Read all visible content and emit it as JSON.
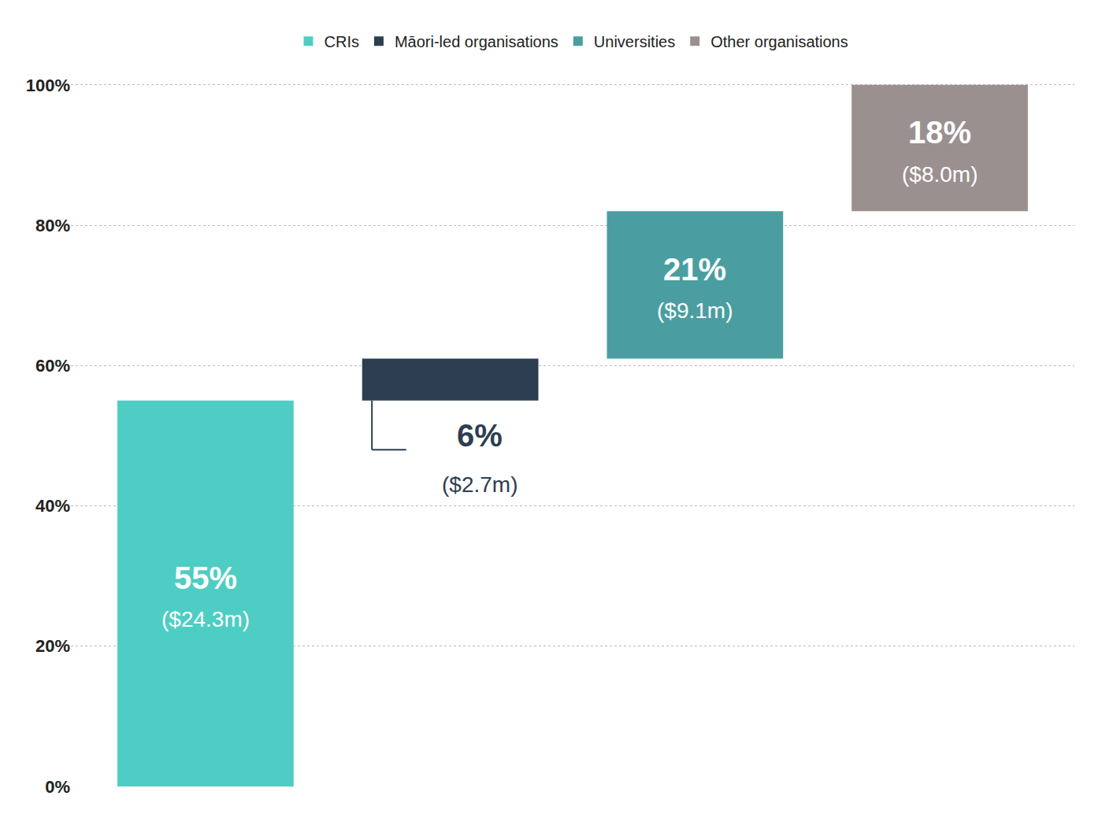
{
  "chart_data": {
    "type": "waterfall",
    "categories": [
      "CRIs",
      "Māori-led organisations",
      "Universities",
      "Other organisations"
    ],
    "values": [
      55,
      6,
      21,
      18
    ],
    "value_labels": [
      "55%",
      "6%",
      "21%",
      "18%"
    ],
    "annotations": [
      "($24.3m)",
      "($2.7m)",
      "($9.1m)",
      "($8.0m)"
    ],
    "colors": [
      "#4ecdc4",
      "#2d3e50",
      "#4a9ea1",
      "#9b9090"
    ],
    "ylim": [
      0,
      102
    ],
    "yticks": [
      {
        "value": 0,
        "label": "0%"
      },
      {
        "value": 20,
        "label": "20%"
      },
      {
        "value": 40,
        "label": "40%"
      },
      {
        "value": 60,
        "label": "60%"
      },
      {
        "value": 80,
        "label": "80%"
      },
      {
        "value": 100,
        "label": "100%"
      }
    ],
    "grid": true,
    "legend": "top",
    "data_labels": true,
    "tick_labels": "y"
  }
}
